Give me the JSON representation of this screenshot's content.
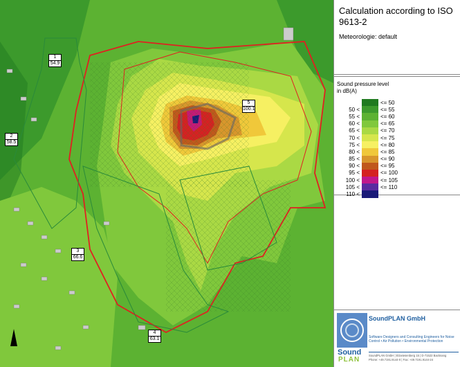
{
  "header": {
    "title": "Calculation according to ISO 9613-2",
    "meteorology": "Meteorologie: default"
  },
  "legend": {
    "title": "Sound pressure level in dB(A)",
    "rows": [
      {
        "upper": "<= 50",
        "color": "#1f7a1f"
      },
      {
        "lower": "50 <",
        "upper": "<= 55",
        "color": "#3c9a2c"
      },
      {
        "lower": "55 <",
        "upper": "<= 60",
        "color": "#5cb232"
      },
      {
        "lower": "60 <",
        "upper": "<= 65",
        "color": "#80c83c"
      },
      {
        "lower": "65 <",
        "upper": "<= 70",
        "color": "#aad944"
      },
      {
        "lower": "70 <",
        "upper": "<= 75",
        "color": "#d6e64c"
      },
      {
        "lower": "75 <",
        "upper": "<= 80",
        "color": "#f6f062"
      },
      {
        "lower": "80 <",
        "upper": "<= 85",
        "color": "#f0c83a"
      },
      {
        "lower": "85 <",
        "upper": "<= 90",
        "color": "#d8962c"
      },
      {
        "lower": "90 <",
        "upper": "<= 95",
        "color": "#c0581c"
      },
      {
        "lower": "95 <",
        "upper": "<= 100",
        "color": "#d42222"
      },
      {
        "lower": "100 <",
        "upper": "<= 105",
        "color": "#c0188c"
      },
      {
        "lower": "105 <",
        "upper": "<= 110",
        "color": "#5a2aa0"
      },
      {
        "lower": "110 <",
        "color": "#1a1a78"
      }
    ]
  },
  "receivers": [
    {
      "id": "1",
      "level": "54.9"
    },
    {
      "id": "2",
      "level": "58.5"
    },
    {
      "id": "3",
      "level": "66.6"
    },
    {
      "id": "4",
      "level": "63.1"
    },
    {
      "id": "5",
      "level": "100.1"
    }
  ],
  "company": {
    "name": "SoundPLAN GmbH",
    "tagline": "Software Designers and Consulting Engineers for Noise Control • Air Pollution • Environmental Protection",
    "address": "SoundPLAN GmbH | Etzwiesenberg 15 | D-71522 Backnang",
    "phone": "Phone: +49.7191.9144-0 | Fax: +49.7191.9144-24",
    "logo_top": "Sound",
    "logo_bottom": "PLAN"
  }
}
